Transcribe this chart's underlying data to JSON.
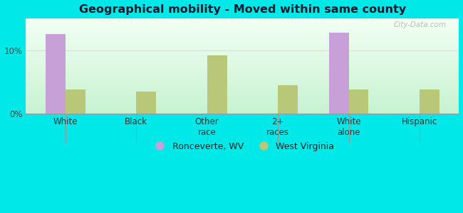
{
  "title": "Geographical mobility - Moved within same county",
  "categories": [
    "White",
    "Black",
    "Other\nrace",
    "2+\nraces",
    "White\nalone",
    "Hispanic"
  ],
  "ronceverte_values": [
    12.5,
    0,
    0,
    0,
    12.8,
    0
  ],
  "wv_values": [
    3.8,
    3.5,
    9.2,
    4.5,
    3.8,
    3.8
  ],
  "ronceverte_color": "#c8a0d8",
  "wv_color": "#b8c878",
  "background_outer": "#00e8e8",
  "ylim": [
    0,
    15
  ],
  "ytick_vals": [
    0,
    10
  ],
  "ytick_labels": [
    "0%",
    "10%"
  ],
  "bar_width": 0.28,
  "legend_labels": [
    "Ronceverte, WV",
    "West Virginia"
  ],
  "watermark": "City-Data.com",
  "title_color": "#1a1a2e",
  "title_fontsize": 11.5
}
